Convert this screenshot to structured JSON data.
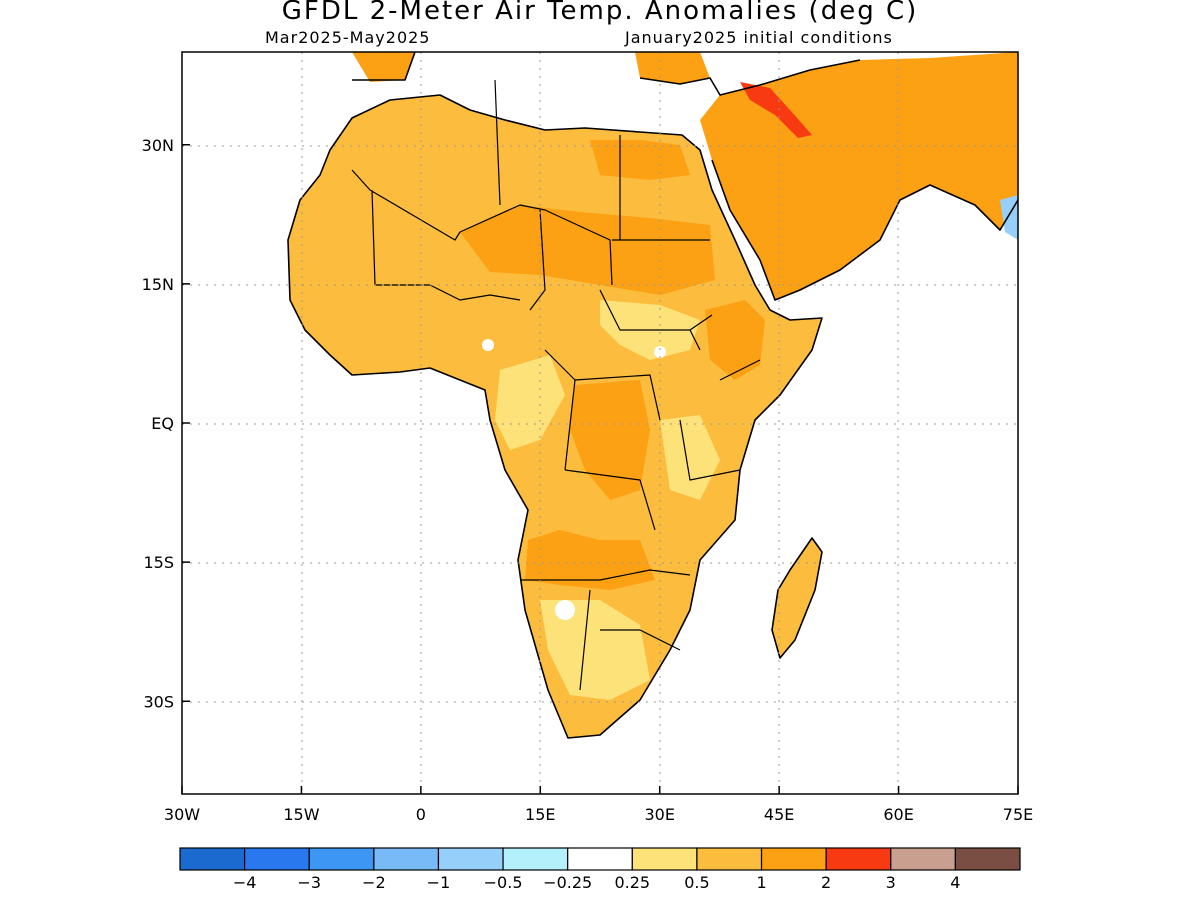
{
  "title": "GFDL 2-Meter Air Temp. Anomalies (deg C)",
  "period": "Mar2025-May2025",
  "initial_conditions": "January2025 initial conditions",
  "map": {
    "lon_range": [
      -30,
      75
    ],
    "lat_range": [
      -40,
      40
    ],
    "x_ticks": [
      {
        "lon": -30,
        "label": "30W"
      },
      {
        "lon": -15,
        "label": "15W"
      },
      {
        "lon": 0,
        "label": "0"
      },
      {
        "lon": 15,
        "label": "15E"
      },
      {
        "lon": 30,
        "label": "30E"
      },
      {
        "lon": 45,
        "label": "45E"
      },
      {
        "lon": 60,
        "label": "60E"
      },
      {
        "lon": 75,
        "label": "75E"
      }
    ],
    "y_ticks": [
      {
        "lat": 30,
        "label": "30N"
      },
      {
        "lat": 15,
        "label": "15N"
      },
      {
        "lat": 0,
        "label": "EQ"
      },
      {
        "lat": -15,
        "label": "15S"
      },
      {
        "lat": -30,
        "label": "30S"
      }
    ],
    "grid": "dotted"
  },
  "legend": {
    "colors": [
      "#1b6ad0",
      "#2a78ee",
      "#3e96f4",
      "#78b9f8",
      "#96d0fa",
      "#b3f0fc",
      "#ffffff",
      "#fde27a",
      "#fcbc3e",
      "#fca014",
      "#f83a12",
      "#c9a090",
      "#7a4e42"
    ],
    "labels": [
      "-4",
      "-3",
      "-2",
      "-1",
      "-0.5",
      "-0.25",
      "0.25",
      "0.5",
      "1",
      "2",
      "3",
      "4"
    ]
  },
  "anomaly_colors": {
    "light": "#fde27a",
    "medium": "#fcbc3e",
    "strong": "#fca014",
    "extreme": "#f83a12",
    "cool": "#96d0fa"
  }
}
